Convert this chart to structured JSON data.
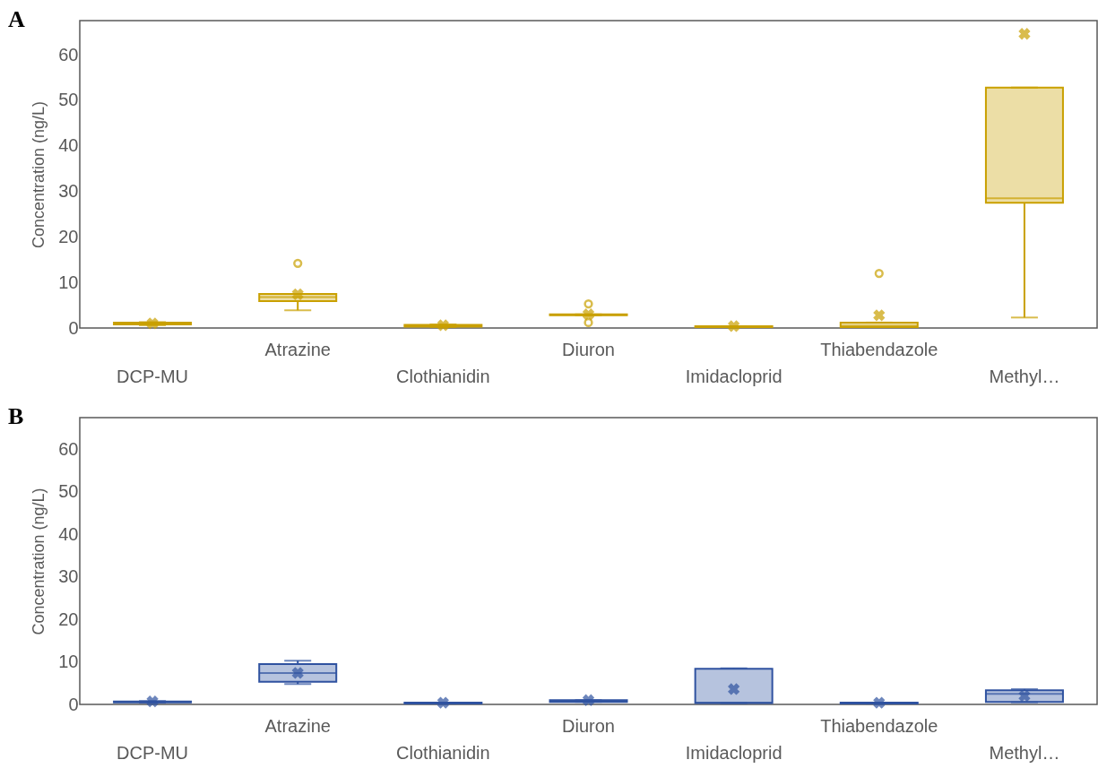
{
  "chart_data": [
    {
      "type": "box",
      "title": "A",
      "ylabel": "Concentration (ng/L)",
      "categories": [
        "DCP-MU",
        "Atrazine",
        "Clothianidin",
        "Diuron",
        "Imidacloprid",
        "Thiabendazole",
        "Methyl…"
      ],
      "color": "#c9a000",
      "ylim": [
        0,
        67.5
      ],
      "yticks": [
        0,
        10,
        20,
        30,
        40,
        50,
        60
      ],
      "grid": false,
      "boxes": [
        {
          "low": 0.6,
          "q1": 0.8,
          "median": 1.0,
          "q3": 1.2,
          "high": 1.3,
          "mean": 1.0
        },
        {
          "low": 3.9,
          "q1": 5.9,
          "median": 6.8,
          "q3": 7.5,
          "high": 7.5,
          "mean": 7.4,
          "outliers": [
            14.2
          ]
        },
        {
          "low": 0.2,
          "q1": 0.3,
          "median": 0.5,
          "q3": 0.7,
          "high": 0.8,
          "mean": 0.6
        },
        {
          "low": 2.8,
          "q1": 2.8,
          "median": 2.9,
          "q3": 3.0,
          "high": 3.0,
          "mean": 3.0,
          "outliers": [
            5.3,
            1.2
          ]
        },
        {
          "low": 0.2,
          "q1": 0.2,
          "median": 0.3,
          "q3": 0.4,
          "high": 0.4,
          "mean": 0.4
        },
        {
          "low": 0.2,
          "q1": 0.2,
          "median": 0.5,
          "q3": 1.2,
          "high": 1.2,
          "mean": 2.8,
          "outliers": [
            12.0
          ]
        },
        {
          "low": 2.3,
          "q1": 27.5,
          "median": 28.5,
          "q3": 52.8,
          "high": 52.8,
          "mean": 64.6
        }
      ]
    },
    {
      "type": "box",
      "title": "B",
      "ylabel": "Concentration (ng/L)",
      "categories": [
        "DCP-MU",
        "Atrazine",
        "Clothianidin",
        "Diuron",
        "Imidacloprid",
        "Thiabendazole",
        "Methyl…"
      ],
      "color": "#2f52a0",
      "ylim": [
        0,
        67.5
      ],
      "yticks": [
        0,
        10,
        20,
        30,
        40,
        50,
        60
      ],
      "grid": false,
      "boxes": [
        {
          "low": 0.4,
          "q1": 0.5,
          "median": 0.6,
          "q3": 0.7,
          "high": 0.8,
          "mean": 0.7
        },
        {
          "low": 4.8,
          "q1": 5.3,
          "median": 7.4,
          "q3": 9.5,
          "high": 10.3,
          "mean": 7.4
        },
        {
          "low": 0.2,
          "q1": 0.2,
          "median": 0.3,
          "q3": 0.4,
          "high": 0.4,
          "mean": 0.4
        },
        {
          "low": 0.6,
          "q1": 0.6,
          "median": 0.8,
          "q3": 1.0,
          "high": 1.0,
          "mean": 1.0
        },
        {
          "low": 0.3,
          "q1": 0.3,
          "median": 0.4,
          "q3": 8.4,
          "high": 8.5,
          "mean": 3.6
        },
        {
          "low": 0.2,
          "q1": 0.2,
          "median": 0.3,
          "q3": 0.4,
          "high": 0.4,
          "mean": 0.4
        },
        {
          "low": 0.5,
          "q1": 0.6,
          "median": 2.5,
          "q3": 3.3,
          "high": 3.6,
          "mean": 2.0
        }
      ]
    }
  ]
}
